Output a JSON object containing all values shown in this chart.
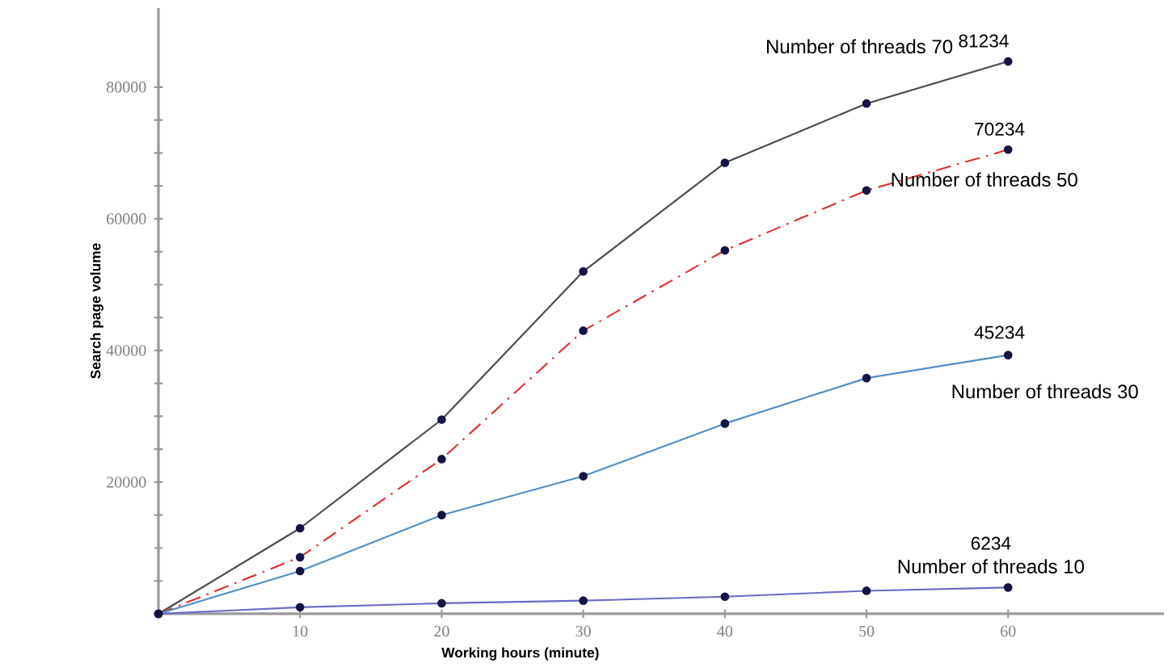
{
  "chart_data": {
    "type": "line",
    "xlabel": "Working hours (minute)",
    "ylabel": "Search page volume",
    "x": [
      0,
      10,
      20,
      30,
      40,
      50,
      60
    ],
    "series": [
      {
        "name": "Number of threads 70",
        "color": "#4a4a4a",
        "values": [
          0,
          13000,
          29500,
          52000,
          68500,
          77500,
          83900
        ]
      },
      {
        "name": "Number of threads 50",
        "color": "#e03030",
        "line_style": "dashed",
        "values": [
          0,
          8600,
          23500,
          43000,
          55200,
          64300,
          70500
        ]
      },
      {
        "name": "Number of threads 30",
        "color": "#4f8fc8",
        "values": [
          0,
          6500,
          15000,
          20900,
          28900,
          35800,
          39300
        ]
      },
      {
        "name": "Number of threads 10",
        "color": "#6a6ac8",
        "values": [
          0,
          1000,
          1600,
          2000,
          2600,
          3500,
          4000
        ]
      }
    ],
    "annotations": [
      "81234",
      "70234",
      "45234",
      "6234"
    ],
    "marker": "circle",
    "line_style": "solid",
    "grid": false,
    "legend": false,
    "xlim": [
      0,
      71
    ],
    "ylim": [
      0,
      92000
    ],
    "xticks": [
      10,
      20,
      30,
      40,
      50,
      60
    ],
    "yticks": [
      {
        "value": 5000,
        "label": null
      },
      {
        "value": 10000,
        "label": null
      },
      {
        "value": 15000,
        "label": null
      },
      20000,
      {
        "value": 25000,
        "label": null
      },
      {
        "value": 30000,
        "label": null
      },
      {
        "value": 35000,
        "label": null
      },
      40000,
      {
        "value": 45000,
        "label": null
      },
      {
        "value": 50000,
        "label": null
      },
      {
        "value": 55000,
        "label": null
      },
      60000,
      {
        "value": 65000,
        "label": null
      },
      {
        "value": 70000,
        "label": null
      },
      {
        "value": 75000,
        "label": null
      },
      80000
    ]
  }
}
